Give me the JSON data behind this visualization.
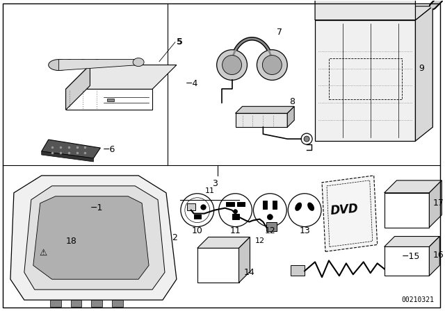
{
  "bg_color": "#ffffff",
  "fig_width": 6.4,
  "fig_height": 4.48,
  "dpi": 100,
  "part_number": "00210321",
  "line_color": "#000000",
  "gray1": "#aaaaaa",
  "gray2": "#cccccc",
  "gray3": "#e8e8e8",
  "dot_color": "#888888"
}
